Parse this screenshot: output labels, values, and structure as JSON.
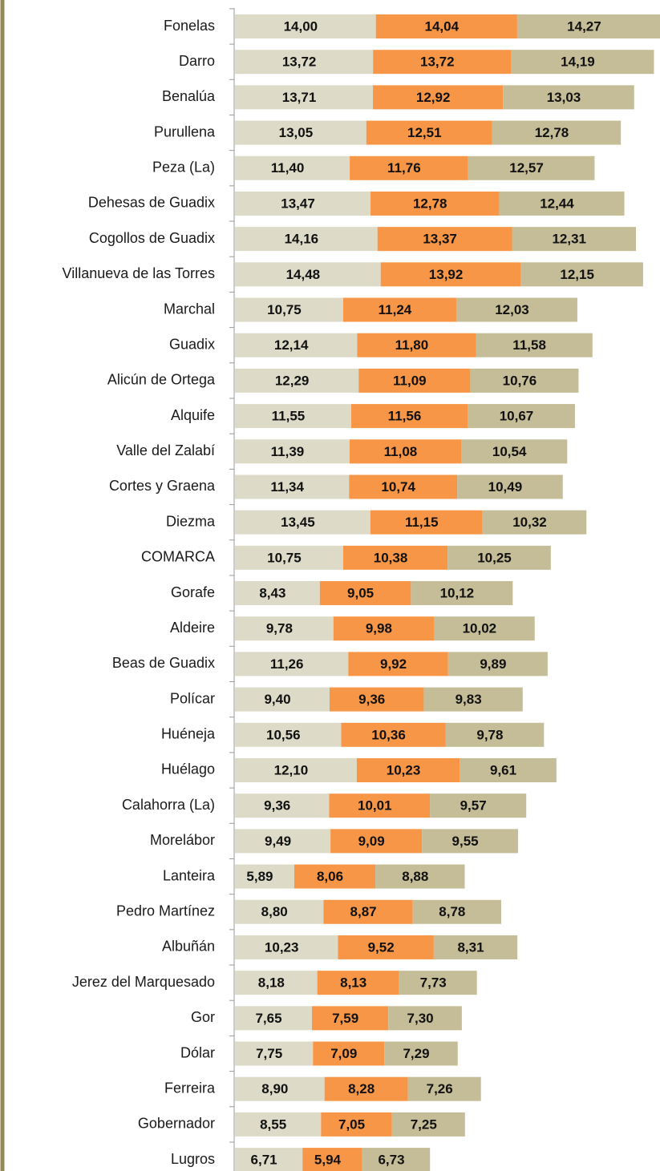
{
  "chart_data": {
    "type": "stacked-bar-horizontal",
    "categories": [
      "Fonelas",
      "Darro",
      "Benalúa",
      "Purullena",
      "Peza (La)",
      "Dehesas de Guadix",
      "Cogollos de Guadix",
      "Villanueva de las Torres",
      "Marchal",
      "Guadix",
      "Alicún de Ortega",
      "Alquife",
      "Valle del Zalabí",
      "Cortes y Graena",
      "Diezma",
      "COMARCA",
      "Gorafe",
      "Aldeire",
      "Beas de Guadix",
      "Polícar",
      "Huéneja",
      "Huélago",
      "Calahorra (La)",
      "Morelábor",
      "Lanteira",
      "Pedro Martínez",
      "Albuñán",
      "Jerez del Marquesado",
      "Gor",
      "Dólar",
      "Ferreira",
      "Gobernador",
      "Lugros"
    ],
    "series": [
      {
        "color": "#dddbc8",
        "values": [
          14.0,
          13.72,
          13.71,
          13.05,
          11.4,
          13.47,
          14.16,
          14.48,
          10.75,
          12.14,
          12.29,
          11.55,
          11.39,
          11.34,
          13.45,
          10.75,
          8.43,
          9.78,
          11.26,
          9.4,
          10.56,
          12.1,
          9.36,
          9.49,
          5.89,
          8.8,
          10.23,
          8.18,
          7.65,
          7.75,
          8.9,
          8.55,
          6.71
        ],
        "value_labels": [
          "14,00",
          "13,72",
          "13,71",
          "13,05",
          "11,40",
          "13,47",
          "14,16",
          "14,48",
          "10,75",
          "12,14",
          "12,29",
          "11,55",
          "11,39",
          "11,34",
          "13,45",
          "10,75",
          "8,43",
          "9,78",
          "11,26",
          "9,40",
          "10,56",
          "12,10",
          "9,36",
          "9,49",
          "5,89",
          "8,80",
          "10,23",
          "8,18",
          "7,65",
          "7,75",
          "8,90",
          "8,55",
          "6,71"
        ]
      },
      {
        "color": "#f79646",
        "values": [
          14.04,
          13.72,
          12.92,
          12.51,
          11.76,
          12.78,
          13.37,
          13.92,
          11.24,
          11.8,
          11.09,
          11.56,
          11.08,
          10.74,
          11.15,
          10.38,
          9.05,
          9.98,
          9.92,
          9.36,
          10.36,
          10.23,
          10.01,
          9.09,
          8.06,
          8.87,
          9.52,
          8.13,
          7.59,
          7.09,
          8.28,
          7.05,
          5.94
        ],
        "value_labels": [
          "14,04",
          "13,72",
          "12,92",
          "12,51",
          "11,76",
          "12,78",
          "13,37",
          "13,92",
          "11,24",
          "11,80",
          "11,09",
          "11,56",
          "11,08",
          "10,74",
          "11,15",
          "10,38",
          "9,05",
          "9,98",
          "9,92",
          "9,36",
          "10,36",
          "10,23",
          "10,01",
          "9,09",
          "8,06",
          "8,87",
          "9,52",
          "8,13",
          "7,59",
          "7,09",
          "8,28",
          "7,05",
          "5,94"
        ]
      },
      {
        "color": "#c4bd97",
        "values": [
          14.27,
          14.19,
          13.03,
          12.78,
          12.57,
          12.44,
          12.31,
          12.15,
          12.03,
          11.58,
          10.76,
          10.67,
          10.54,
          10.49,
          10.32,
          10.25,
          10.12,
          10.02,
          9.89,
          9.83,
          9.78,
          9.61,
          9.57,
          9.55,
          8.88,
          8.78,
          8.31,
          7.73,
          7.3,
          7.29,
          7.26,
          7.25,
          6.73
        ],
        "value_labels": [
          "14,27",
          "14,19",
          "13,03",
          "12,78",
          "12,57",
          "12,44",
          "12,31",
          "12,15",
          "12,03",
          "11,58",
          "10,76",
          "10,67",
          "10,54",
          "10,49",
          "10,32",
          "10,25",
          "10,12",
          "10,02",
          "9,89",
          "9,83",
          "9,78",
          "9,61",
          "9,57",
          "9,55",
          "8,88",
          "8,78",
          "8,31",
          "7,73",
          "7,30",
          "7,29",
          "7,26",
          "7,25",
          "6,73"
        ]
      }
    ]
  }
}
